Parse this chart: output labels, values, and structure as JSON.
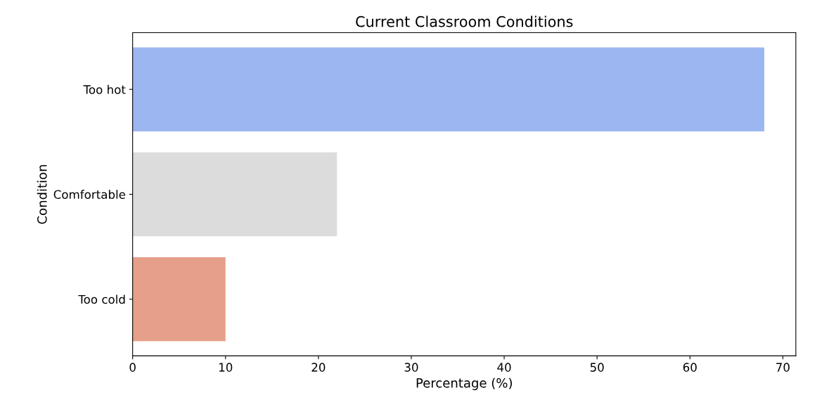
{
  "chart_data": {
    "type": "bar",
    "orientation": "horizontal",
    "title": "Current Classroom Conditions",
    "xlabel": "Percentage (%)",
    "ylabel": "Condition",
    "categories": [
      "Too hot",
      "Comfortable",
      "Too cold"
    ],
    "values": [
      68,
      22,
      10
    ],
    "colors": [
      "#9bb6f1",
      "#dcdcdc",
      "#e6a089"
    ],
    "xlim": [
      0,
      71.4
    ],
    "xticks": [
      0,
      10,
      20,
      30,
      40,
      50,
      60,
      70
    ],
    "grid": false
  }
}
